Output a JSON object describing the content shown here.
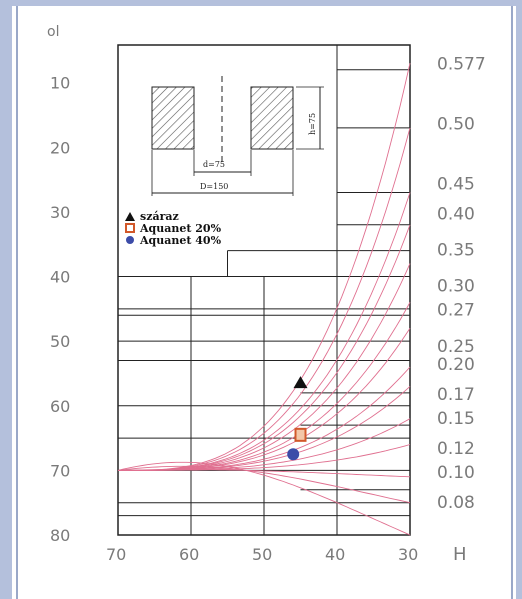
{
  "chart_data": {
    "type": "line",
    "title": "",
    "xlabel": "H",
    "ylabel": "ol",
    "x_ticks": [
      70,
      60,
      50,
      40,
      30
    ],
    "y_ticks": [
      10,
      20,
      30,
      40,
      50,
      60,
      70,
      80
    ],
    "xlim": [
      70,
      30
    ],
    "ylim": [
      0,
      80
    ],
    "curve_labels": [
      "0.577",
      "0.50",
      "0.45",
      "0.40",
      "0.35",
      "0.30",
      "0.27",
      "0.25",
      "0.20",
      "0.17",
      "0.15",
      "0.12",
      "0.10",
      "0.08"
    ],
    "curve_end_values": [
      7,
      17,
      27,
      32,
      38,
      44,
      48,
      54,
      57,
      62,
      66,
      71,
      75,
      80
    ],
    "series": [
      {
        "name": "száraz",
        "marker": "triangle",
        "color": "#111111",
        "x": [
          45
        ],
        "y": [
          56.5
        ]
      },
      {
        "name": "Aquanet 20%",
        "marker": "square",
        "color": "#d2582a",
        "x": [
          45
        ],
        "y": [
          64.5
        ]
      },
      {
        "name": "Aquanet 40%",
        "marker": "circle",
        "color": "#3c4ca8",
        "x": [
          46
        ],
        "y": [
          67.5
        ]
      }
    ],
    "inset": {
      "dim_height": "h=75",
      "dim_inner": "d=75",
      "dim_outer": "D=150"
    },
    "grid": true,
    "legend_position": "upper-left"
  },
  "colors": {
    "page_background": "#b4c0dc",
    "curve_color": "#e07090",
    "grid_color": "#222222"
  }
}
